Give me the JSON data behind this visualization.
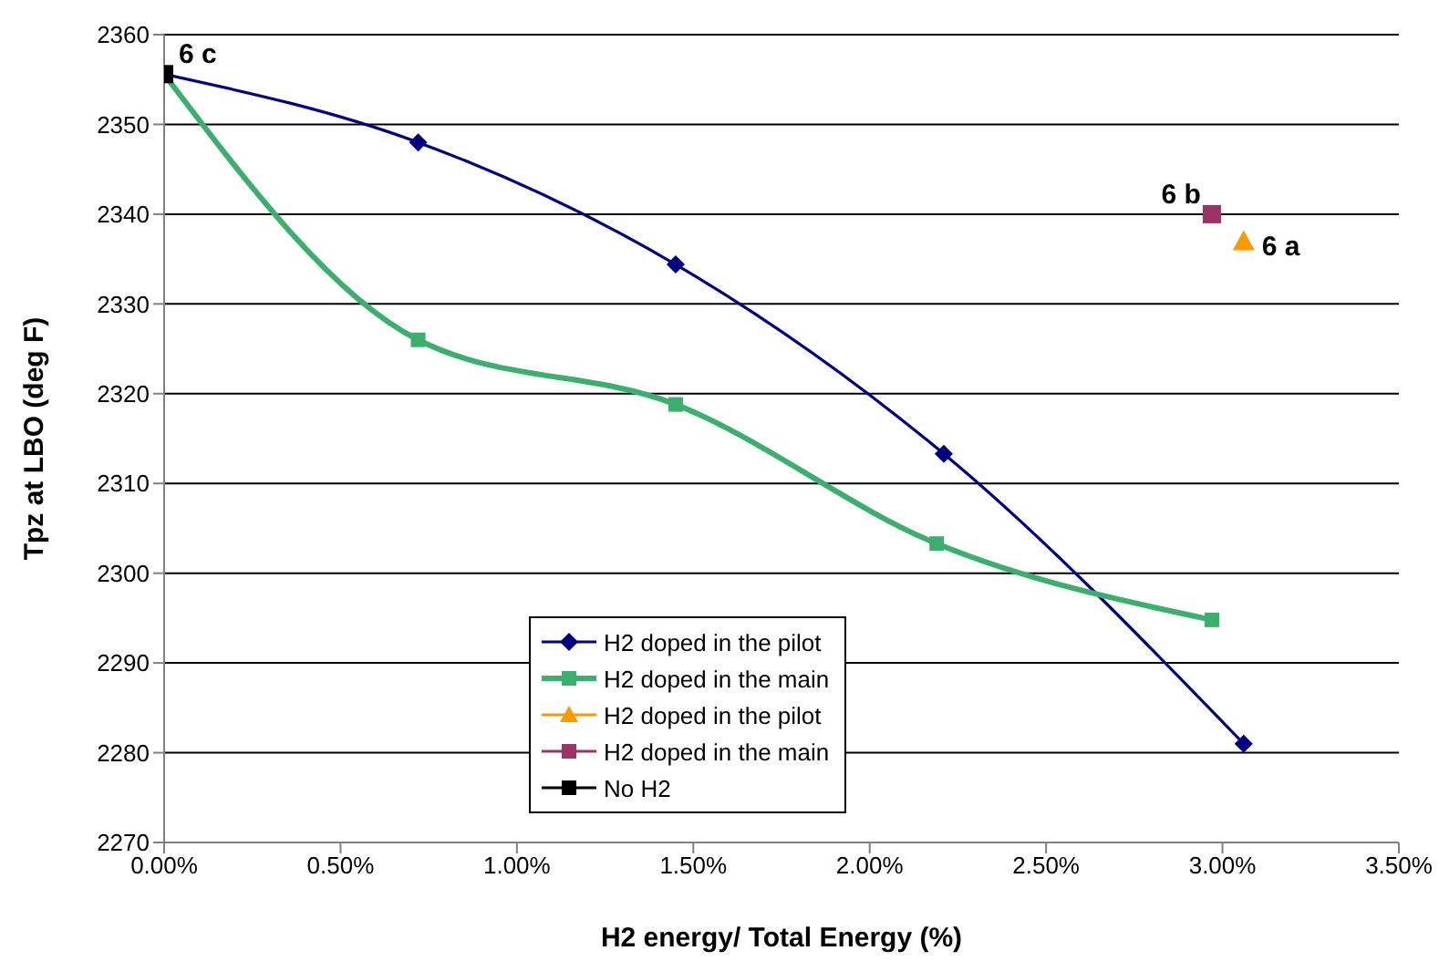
{
  "chart_data": {
    "type": "line",
    "xlabel": "H2 energy/ Total Energy (%)",
    "ylabel": "Tpz at LBO (deg F)",
    "xlim": [
      0,
      3.5
    ],
    "xticks": [
      {
        "value": 0,
        "label": "0.00%"
      },
      {
        "value": 0.5,
        "label": "0.50%"
      },
      {
        "value": 1,
        "label": "1.00%"
      },
      {
        "value": 1.5,
        "label": "1.50%"
      },
      {
        "value": 2,
        "label": "2.00%"
      },
      {
        "value": 2.5,
        "label": "2.50%"
      },
      {
        "value": 3,
        "label": "3.00%"
      },
      {
        "value": 3.5,
        "label": "3.50%"
      }
    ],
    "ylim": [
      2270,
      2360
    ],
    "yticks": [
      2270,
      2280,
      2290,
      2300,
      2310,
      2320,
      2330,
      2340,
      2350,
      2360
    ],
    "grid": "y",
    "legend": "bottom",
    "series": [
      {
        "name": "H2 doped in the pilot",
        "marker": "diamond",
        "color": "#000080",
        "x": [
          0,
          0.72,
          1.45,
          2.21,
          3.06
        ],
        "values": [
          2355.6,
          2348,
          2334.4,
          2313.3,
          2281
        ]
      },
      {
        "name": "H2 doped in the main",
        "marker": "square",
        "color": "#3cae6e",
        "x": [
          0,
          0.72,
          1.45,
          2.19,
          2.97
        ],
        "values": [
          2355.6,
          2326,
          2318.8,
          2303.3,
          2294.8
        ]
      },
      {
        "name": "H2 doped in the pilot",
        "type": "scatter",
        "marker": "triangle",
        "color": "#ff9900",
        "x": [
          3.06
        ],
        "values": [
          2337
        ]
      },
      {
        "name": "H2 doped in the main",
        "type": "scatter",
        "marker": "square",
        "color": "#993366",
        "x": [
          2.97
        ],
        "values": [
          2340
        ]
      },
      {
        "name": "No H2",
        "type": "scatter",
        "marker": "square",
        "color": "#000000",
        "x": [
          0
        ],
        "values": [
          2355.6
        ]
      }
    ],
    "annotations": [
      {
        "text": "6 c",
        "x": 0,
        "y": 2355.6
      },
      {
        "text": "6 b",
        "x": 2.97,
        "y": 2340
      },
      {
        "text": "6 a",
        "x": 3.06,
        "y": 2337
      }
    ]
  }
}
